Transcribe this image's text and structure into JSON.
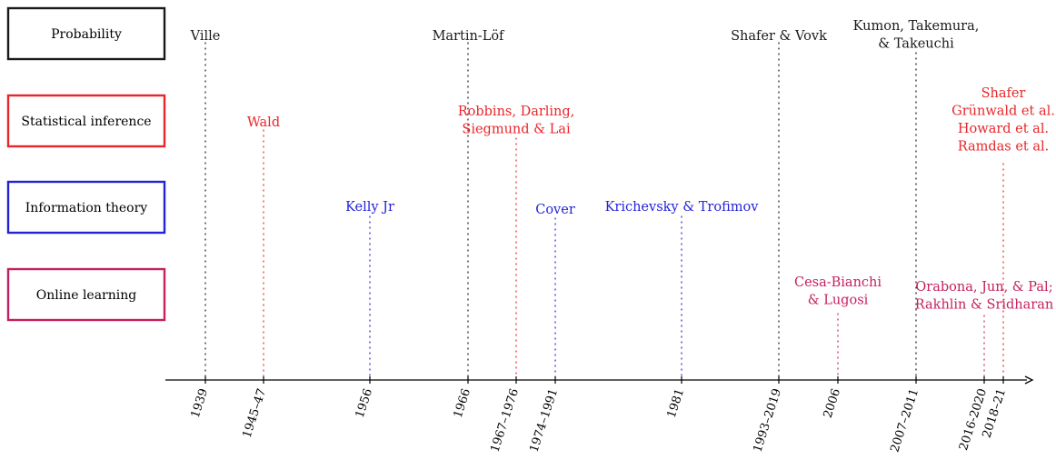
{
  "colors": {
    "probability": "#1a1a1a",
    "statistical_inference": "#e8262a",
    "information_theory": "#2323d6",
    "online_learning": "#c41f5e"
  },
  "categories": [
    {
      "key": "probability",
      "label": "Probability"
    },
    {
      "key": "statistical_inference",
      "label": "Statistical inference"
    },
    {
      "key": "information_theory",
      "label": "Information theory"
    },
    {
      "key": "online_learning",
      "label": "Online learning"
    }
  ],
  "ticks": [
    "1939",
    "1945–47",
    "1956",
    "1966",
    "1967–1976",
    "1974–1991",
    "1981",
    "1993–2019",
    "2006",
    "2007–2011",
    "2016-2020",
    "2018–21"
  ],
  "events": [
    {
      "category": "probability",
      "tick": 0,
      "lines": [
        "Ville"
      ]
    },
    {
      "category": "statistical_inference",
      "tick": 1,
      "lines": [
        "Wald"
      ]
    },
    {
      "category": "information_theory",
      "tick": 2,
      "lines": [
        "Kelly Jr"
      ]
    },
    {
      "category": "probability",
      "tick": 3,
      "lines": [
        "Martin-Löf"
      ]
    },
    {
      "category": "statistical_inference",
      "tick": 4,
      "lines": [
        "Robbins, Darling,",
        "Siegmund & Lai"
      ]
    },
    {
      "category": "information_theory",
      "tick": 5,
      "lines": [
        "Cover"
      ]
    },
    {
      "category": "information_theory",
      "tick": 6,
      "lines": [
        "Krichevsky & Trofimov"
      ]
    },
    {
      "category": "probability",
      "tick": 7,
      "lines": [
        "Shafer & Vovk"
      ]
    },
    {
      "category": "online_learning",
      "tick": 8,
      "lines": [
        "Cesa-Bianchi",
        "& Lugosi"
      ]
    },
    {
      "category": "probability",
      "tick": 9,
      "lines": [
        "Kumon, Takemura,",
        "& Takeuchi"
      ]
    },
    {
      "category": "online_learning",
      "tick": 10,
      "lines": [
        "Orabona, Jun, & Pal;",
        "Rakhlin & Sridharan"
      ]
    },
    {
      "category": "statistical_inference",
      "tick": 11,
      "lines": [
        "Shafer",
        "Grünwald et al.",
        "Howard et al.",
        "Ramdas et al."
      ]
    }
  ]
}
